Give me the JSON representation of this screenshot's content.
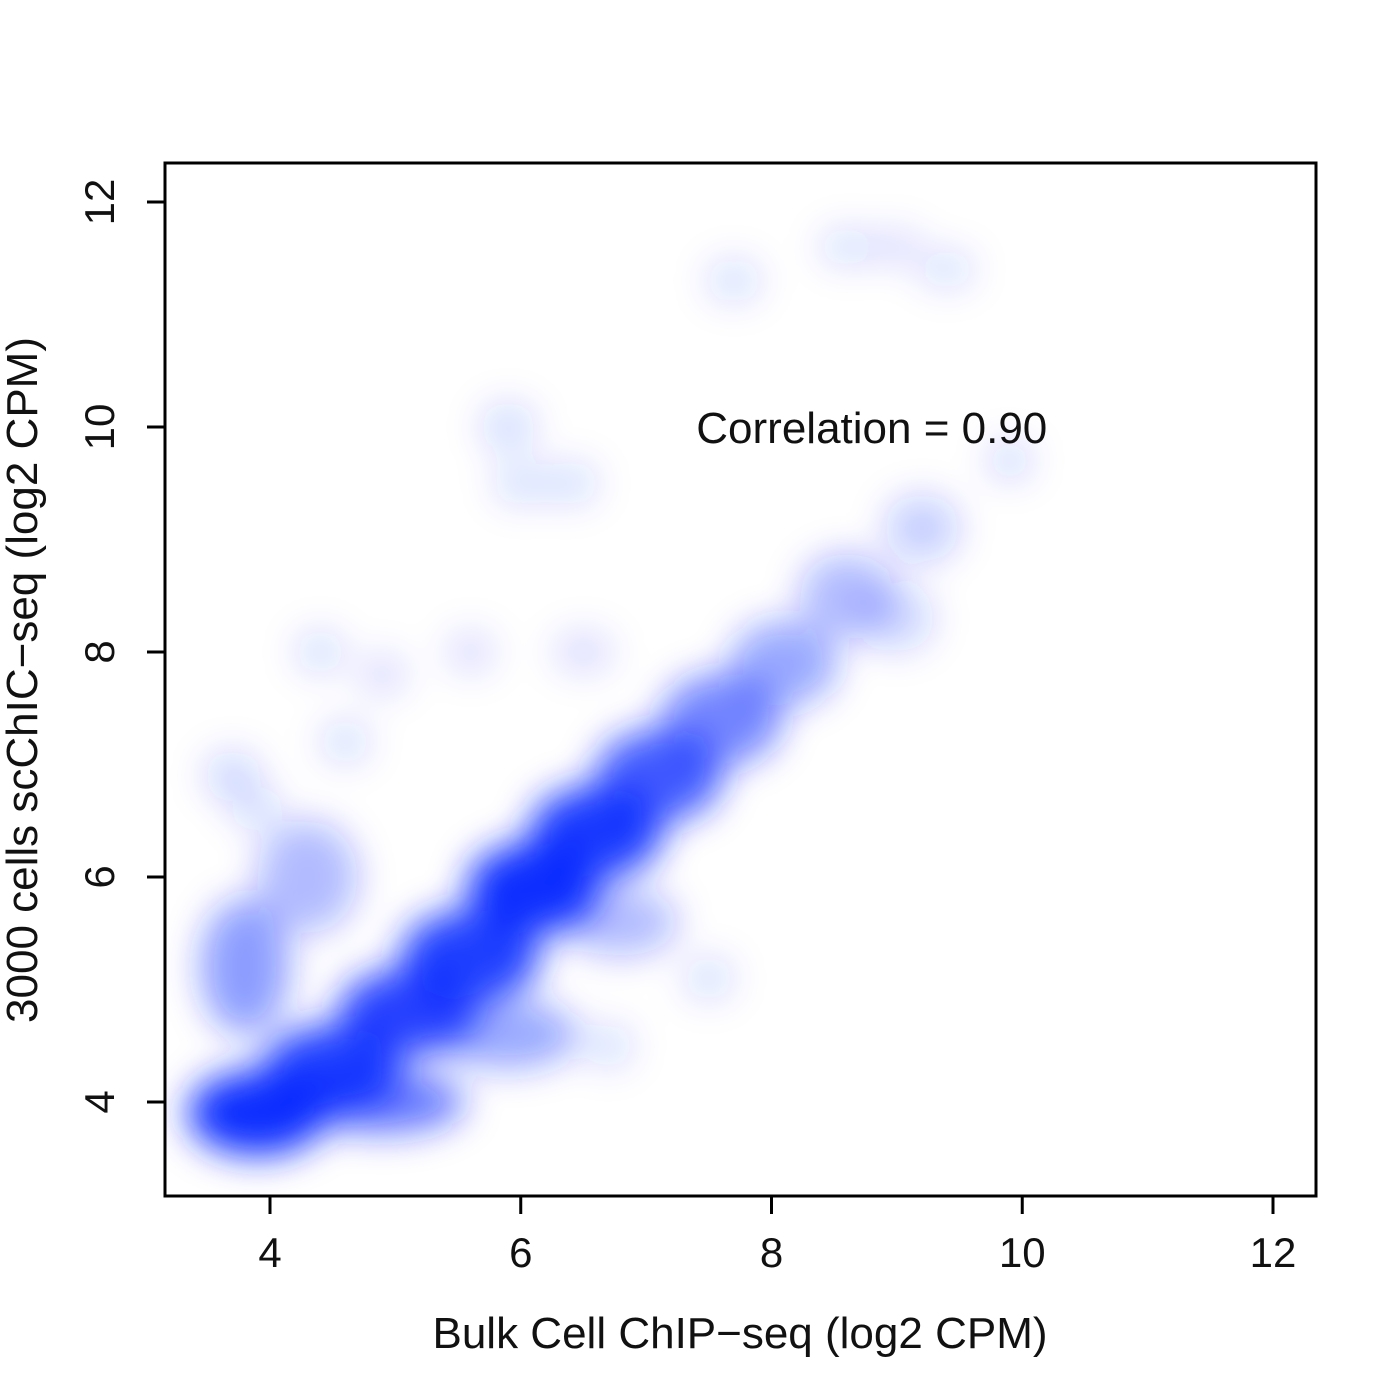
{
  "chart_data": {
    "type": "scatter",
    "style": "smoothed density scatter",
    "color": "#0022ff",
    "xlabel": "Bulk Cell ChIP−seq (log2 CPM)",
    "ylabel": "3000 cells scChIC−seq (log2 CPM)",
    "xlim": [
      3.2,
      12.4
    ],
    "ylim": [
      3.2,
      12.4
    ],
    "x_ticks": [
      4,
      6,
      8,
      10,
      12
    ],
    "y_ticks": [
      4,
      6,
      8,
      10,
      12
    ],
    "x_tick_labels": [
      "4",
      "6",
      "8",
      "10",
      "12"
    ],
    "y_tick_labels": [
      "4",
      "6",
      "8",
      "10",
      "12"
    ],
    "grid": false,
    "legend": "none",
    "annotation": {
      "text": "Correlation = 0.90",
      "x": 7.4,
      "y": 10.0
    },
    "correlation": 0.9,
    "density_clusters": [
      {
        "x": 3.9,
        "y": 3.9,
        "w": 1.1,
        "h": 0.75,
        "d": 0.95
      },
      {
        "x": 4.5,
        "y": 4.3,
        "w": 1.1,
        "h": 0.75,
        "d": 0.88
      },
      {
        "x": 5.1,
        "y": 4.8,
        "w": 1.1,
        "h": 0.75,
        "d": 0.85
      },
      {
        "x": 5.6,
        "y": 5.3,
        "w": 1.1,
        "h": 0.8,
        "d": 0.88
      },
      {
        "x": 6.1,
        "y": 5.9,
        "w": 1.05,
        "h": 0.8,
        "d": 0.95
      },
      {
        "x": 6.6,
        "y": 6.4,
        "w": 1.05,
        "h": 0.8,
        "d": 0.9
      },
      {
        "x": 7.1,
        "y": 6.9,
        "w": 1.0,
        "h": 0.8,
        "d": 0.75
      },
      {
        "x": 7.6,
        "y": 7.4,
        "w": 0.95,
        "h": 0.8,
        "d": 0.55
      },
      {
        "x": 8.1,
        "y": 7.9,
        "w": 0.85,
        "h": 0.75,
        "d": 0.4
      },
      {
        "x": 8.6,
        "y": 8.5,
        "w": 0.75,
        "h": 0.75,
        "d": 0.3
      },
      {
        "x": 9.2,
        "y": 9.1,
        "w": 0.6,
        "h": 0.6,
        "d": 0.22
      },
      {
        "x": 9.9,
        "y": 9.7,
        "w": 0.35,
        "h": 0.35,
        "d": 0.18
      },
      {
        "x": 4.9,
        "y": 4.0,
        "w": 1.3,
        "h": 0.55,
        "d": 0.6
      },
      {
        "x": 5.9,
        "y": 4.6,
        "w": 1.1,
        "h": 0.6,
        "d": 0.4
      },
      {
        "x": 6.8,
        "y": 5.6,
        "w": 0.9,
        "h": 0.6,
        "d": 0.3
      },
      {
        "x": 7.5,
        "y": 5.1,
        "w": 0.4,
        "h": 0.4,
        "d": 0.15
      },
      {
        "x": 6.7,
        "y": 4.5,
        "w": 0.4,
        "h": 0.4,
        "d": 0.15
      },
      {
        "x": 3.8,
        "y": 5.2,
        "w": 0.7,
        "h": 1.2,
        "d": 0.45
      },
      {
        "x": 4.3,
        "y": 6.0,
        "w": 0.8,
        "h": 1.0,
        "d": 0.3
      },
      {
        "x": 3.7,
        "y": 6.9,
        "w": 0.45,
        "h": 0.45,
        "d": 0.18
      },
      {
        "x": 3.9,
        "y": 6.6,
        "w": 0.4,
        "h": 0.4,
        "d": 0.15
      },
      {
        "x": 4.6,
        "y": 7.2,
        "w": 0.4,
        "h": 0.4,
        "d": 0.15
      },
      {
        "x": 4.4,
        "y": 8.0,
        "w": 0.4,
        "h": 0.4,
        "d": 0.15
      },
      {
        "x": 4.9,
        "y": 7.8,
        "w": 0.4,
        "h": 0.4,
        "d": 0.13
      },
      {
        "x": 5.6,
        "y": 8.0,
        "w": 0.4,
        "h": 0.4,
        "d": 0.13
      },
      {
        "x": 6.5,
        "y": 8.0,
        "w": 0.5,
        "h": 0.4,
        "d": 0.13
      },
      {
        "x": 5.9,
        "y": 10.0,
        "w": 0.45,
        "h": 0.45,
        "d": 0.16
      },
      {
        "x": 6.0,
        "y": 9.5,
        "w": 0.45,
        "h": 0.4,
        "d": 0.14
      },
      {
        "x": 6.4,
        "y": 9.5,
        "w": 0.45,
        "h": 0.4,
        "d": 0.14
      },
      {
        "x": 7.7,
        "y": 11.3,
        "w": 0.45,
        "h": 0.4,
        "d": 0.14
      },
      {
        "x": 8.6,
        "y": 11.6,
        "w": 0.45,
        "h": 0.35,
        "d": 0.14
      },
      {
        "x": 9.0,
        "y": 11.6,
        "w": 0.45,
        "h": 0.35,
        "d": 0.12
      },
      {
        "x": 9.4,
        "y": 11.4,
        "w": 0.45,
        "h": 0.35,
        "d": 0.14
      },
      {
        "x": 9.0,
        "y": 8.3,
        "w": 0.6,
        "h": 0.6,
        "d": 0.18
      }
    ]
  }
}
